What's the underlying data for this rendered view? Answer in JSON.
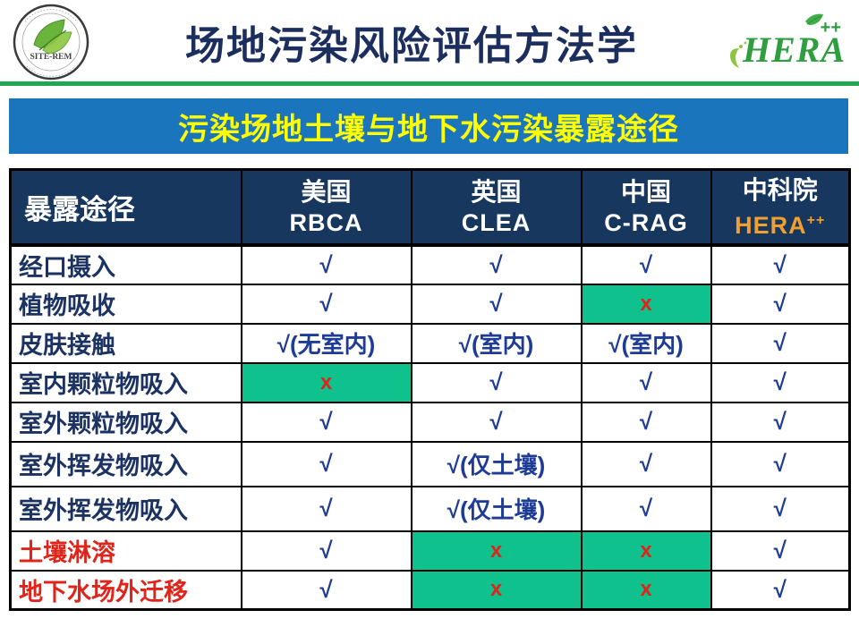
{
  "header": {
    "title": "场地污染风险评估方法学",
    "site_logo_text": "SITE-REM",
    "hera_logo": {
      "text": "HERA",
      "superscript": "++"
    }
  },
  "banner": {
    "title": "污染场地土壤与地下水污染暴露途径"
  },
  "table": {
    "corner_label": "暴露途径",
    "columns": [
      {
        "country": "美国",
        "standard": "RBCA",
        "standard_color": "#ffffff"
      },
      {
        "country": "英国",
        "standard": "CLEA",
        "standard_color": "#ffffff"
      },
      {
        "country": "中国",
        "standard": "C-RAG",
        "standard_color": "#ffffff"
      },
      {
        "country": "中科院",
        "standard": "HERA",
        "standard_sup": "++",
        "standard_color": "#f0a030"
      }
    ],
    "rows": [
      {
        "label": "经口摄入",
        "cells": [
          {
            "text": "√"
          },
          {
            "text": "√"
          },
          {
            "text": "√"
          },
          {
            "text": "√"
          }
        ]
      },
      {
        "label": "植物吸收",
        "cells": [
          {
            "text": "√"
          },
          {
            "text": "√"
          },
          {
            "text": "x",
            "highlight": true
          },
          {
            "text": "√"
          }
        ]
      },
      {
        "label": "皮肤接触",
        "cells": [
          {
            "text": "√(无室内)"
          },
          {
            "text": "√(室内)"
          },
          {
            "text": "√(室内)"
          },
          {
            "text": "√"
          }
        ]
      },
      {
        "label": "室内颗粒物吸入",
        "cells": [
          {
            "text": "x",
            "highlight": true
          },
          {
            "text": "√"
          },
          {
            "text": "√"
          },
          {
            "text": "√"
          }
        ]
      },
      {
        "label": "室外颗粒物吸入",
        "cells": [
          {
            "text": "√"
          },
          {
            "text": "√"
          },
          {
            "text": "√"
          },
          {
            "text": "√"
          }
        ]
      },
      {
        "label": "室外挥发物吸入",
        "cells": [
          {
            "text": "√"
          },
          {
            "text": "√(仅土壤)"
          },
          {
            "text": "√"
          },
          {
            "text": "√"
          }
        ]
      },
      {
        "label": "室外挥发物吸入",
        "cells": [
          {
            "text": "√"
          },
          {
            "text": "√(仅土壤)"
          },
          {
            "text": "√"
          },
          {
            "text": "√"
          }
        ]
      },
      {
        "label": "土壤淋溶",
        "label_red": true,
        "cells": [
          {
            "text": "√"
          },
          {
            "text": "x",
            "highlight": true
          },
          {
            "text": "x",
            "highlight": true
          },
          {
            "text": "√"
          }
        ]
      },
      {
        "label": "地下水场外迁移",
        "label_red": true,
        "cells": [
          {
            "text": "√"
          },
          {
            "text": "x",
            "highlight": true
          },
          {
            "text": "x",
            "highlight": true
          },
          {
            "text": "√"
          }
        ]
      }
    ]
  },
  "colors": {
    "title_navy": "#1c2e5e",
    "banner_blue": "#1b75bc",
    "banner_yellow": "#ffff00",
    "header_navy": "#17375e",
    "green_rule": "#21a651",
    "cell_highlight_green": "#0fc18c",
    "check_blue": "#1e3c96",
    "mark_red": "#e0241a",
    "hera_orange": "#f0a030",
    "hera_green": "#2f9e41"
  }
}
